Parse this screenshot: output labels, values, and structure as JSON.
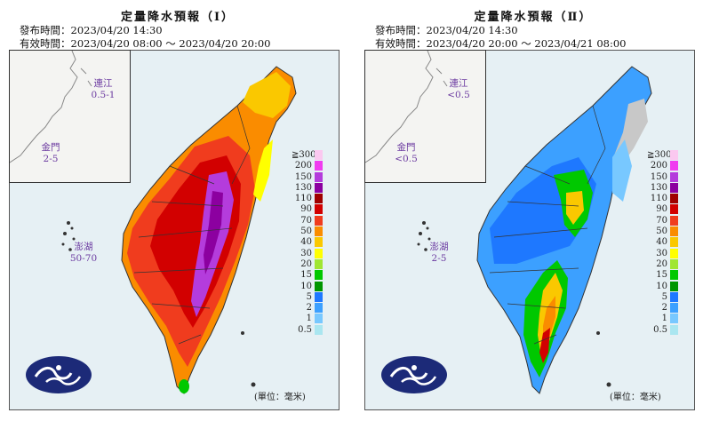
{
  "panels": [
    {
      "title": "定量降水預報（Ⅰ）",
      "issued": "發布時間：2023/04/20 14:30",
      "valid": "有效時間：2023/04/20 08:00 ～ 2023/04/20 20:00",
      "islands": [
        {
          "name": "連江",
          "value": "0.5-1"
        },
        {
          "name": "金門",
          "value": "2-5"
        },
        {
          "name": "澎湖",
          "value": "50-70"
        }
      ],
      "unit": "(單位：毫米)"
    },
    {
      "title": "定量降水預報（Ⅱ）",
      "issued": "發布時間：2023/04/20 14:30",
      "valid": "有效時間：2023/04/20 20:00 ～ 2023/04/21 08:00",
      "islands": [
        {
          "name": "連江",
          "value": "<0.5"
        },
        {
          "name": "金門",
          "value": "<0.5"
        },
        {
          "name": "澎湖",
          "value": "2-5"
        }
      ],
      "unit": "(單位：毫米)"
    }
  ],
  "legend": {
    "labels": [
      "≧300",
      "200",
      "150",
      "130",
      "110",
      "90",
      "70",
      "50",
      "40",
      "30",
      "20",
      "15",
      "10",
      "5",
      "2",
      "1",
      "0.5"
    ],
    "colors": [
      "#fbc8f0",
      "#f03cf0",
      "#b43cdc",
      "#8c00a0",
      "#a00000",
      "#d20000",
      "#f03c1e",
      "#fa8c00",
      "#fac800",
      "#ffff00",
      "#a0e632",
      "#00c800",
      "#009600",
      "#1e78ff",
      "#3ca0ff",
      "#78c8ff",
      "#aae6f0",
      "#c8c8c8"
    ]
  },
  "colors": {
    "sea": "#e6f0f4",
    "land_outline": "#333333",
    "island_label": "#6b3aa0",
    "logo": "#1c2a78"
  }
}
